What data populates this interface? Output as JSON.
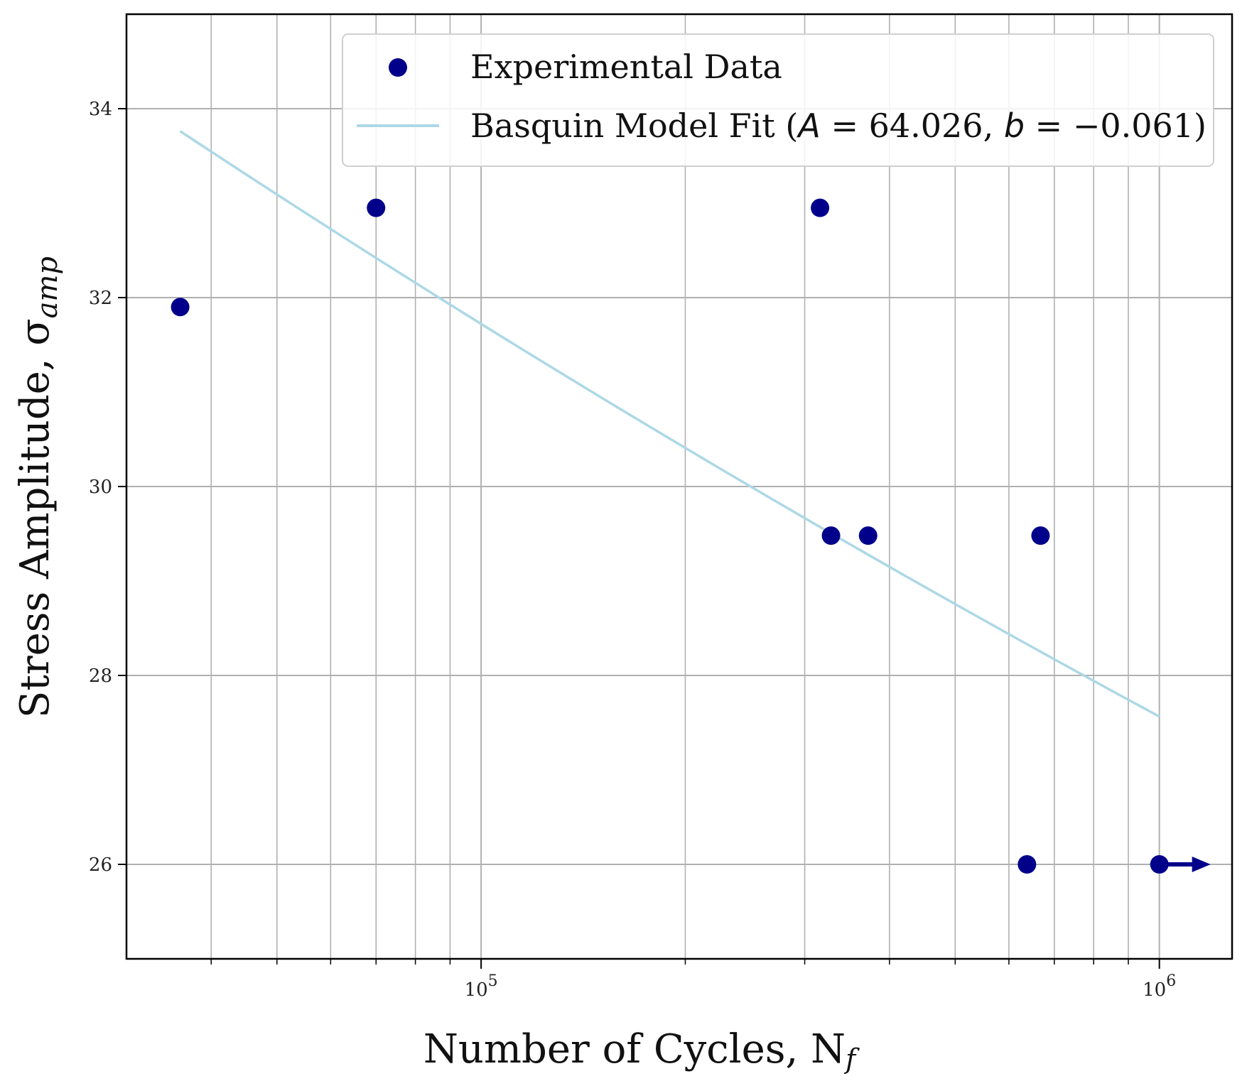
{
  "chart_data": {
    "type": "scatter",
    "x_scale": "log",
    "xlim": [
      30000,
      1280000
    ],
    "ylim": [
      25,
      35
    ],
    "grid": true,
    "xlabel": {
      "main": "Number of Cycles, N",
      "sub": "f"
    },
    "ylabel": {
      "main": "Stress Amplitude, σ",
      "sub": "amp"
    },
    "x_major_ticks": [
      {
        "value": 100000,
        "base": "10",
        "exp": "5"
      },
      {
        "value": 1000000,
        "base": "10",
        "exp": "6"
      }
    ],
    "x_minor_ticks": [
      40000,
      50000,
      60000,
      70000,
      80000,
      90000,
      200000,
      300000,
      400000,
      500000,
      600000,
      700000,
      800000,
      900000
    ],
    "y_ticks": [
      {
        "value": 26,
        "label": "26"
      },
      {
        "value": 28,
        "label": "28"
      },
      {
        "value": 30,
        "label": "30"
      },
      {
        "value": 32,
        "label": "32"
      },
      {
        "value": 34,
        "label": "34"
      }
    ],
    "series": [
      {
        "name": "Experimental Data",
        "kind": "scatter",
        "color": "#00008b",
        "points": [
          {
            "x": 36000,
            "y": 31.9
          },
          {
            "x": 70000,
            "y": 32.95
          },
          {
            "x": 316000,
            "y": 32.95
          },
          {
            "x": 328000,
            "y": 29.48
          },
          {
            "x": 372000,
            "y": 29.48
          },
          {
            "x": 668000,
            "y": 29.48
          },
          {
            "x": 638000,
            "y": 26.0
          },
          {
            "x": 1000000,
            "y": 26.0,
            "runout": true
          }
        ]
      },
      {
        "name": "Basquin Model Fit",
        "kind": "line",
        "color": "#add8e6",
        "A": 64.026,
        "b": -0.061,
        "x_range": [
          36000,
          1000000
        ]
      }
    ],
    "legend": {
      "position": "top-right",
      "entries": [
        {
          "label": "Experimental Data"
        },
        {
          "prefix": "Basquin Model Fit (",
          "A_symbol": "A",
          "A_text": " = 64.026, ",
          "b_symbol": "b",
          "b_text": " = −0.061)"
        }
      ]
    }
  }
}
